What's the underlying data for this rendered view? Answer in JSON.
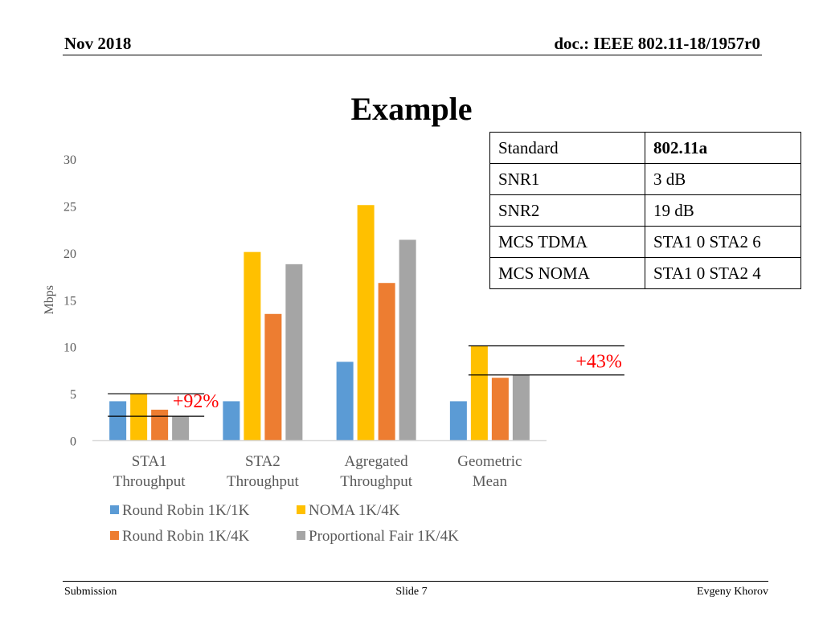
{
  "header": {
    "date": "Nov 2018",
    "doc": "doc.: IEEE 802.11-18/1957r0"
  },
  "title": "Example",
  "table": {
    "rows": [
      {
        "key": "Standard",
        "value": "802.11a"
      },
      {
        "key": "SNR1",
        "value": "3 dB"
      },
      {
        "key": "SNR2",
        "value": "19 dB"
      },
      {
        "key": "MCS TDMA",
        "value": "STA1 0 STA2 6"
      },
      {
        "key": "MCS NOMA",
        "value": "STA1 0 STA2 4"
      }
    ]
  },
  "chart_data": {
    "type": "bar",
    "categories": [
      [
        "STA1",
        "Throughput"
      ],
      [
        "STA2",
        "Throughput"
      ],
      [
        "Agregated",
        "Throughput"
      ],
      [
        "Geometric",
        "Mean"
      ]
    ],
    "series": [
      {
        "name": "Round Robin 1K/1K",
        "color": "#5B9BD5",
        "values": [
          4.2,
          4.2,
          8.4,
          4.2
        ]
      },
      {
        "name": "NOMA 1K/4K",
        "color": "#FFC000",
        "values": [
          5.0,
          20.1,
          25.1,
          10.1
        ]
      },
      {
        "name": "Round Robin 1K/4K",
        "color": "#ED7D31",
        "values": [
          3.3,
          13.5,
          16.8,
          6.7
        ]
      },
      {
        "name": "Proportional Fair 1K/4K",
        "color": "#A5A5A5",
        "values": [
          2.6,
          18.8,
          21.4,
          7.0
        ]
      }
    ],
    "ylabel": "Mbps",
    "ylim": [
      0,
      30
    ],
    "yticks": [
      0,
      5,
      10,
      15,
      20,
      25,
      30
    ],
    "grid": false,
    "legend": "bottom",
    "annotations": [
      {
        "text": "+92%",
        "color": "#FF0000",
        "category": 0,
        "lines_at": [
          5.0,
          2.6
        ]
      },
      {
        "text": "+43%",
        "color": "#FF0000",
        "category": 3,
        "lines_at": [
          10.1,
          7.0
        ]
      }
    ]
  },
  "footer": {
    "left": "Submission",
    "center": "Slide 7",
    "right": "Evgeny Khorov"
  }
}
